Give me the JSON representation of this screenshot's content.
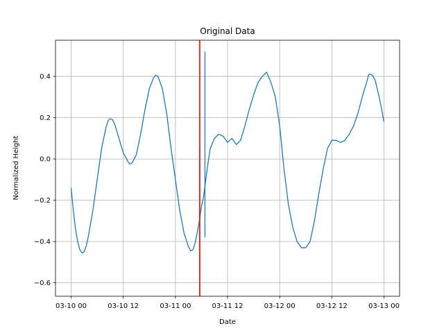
{
  "chart_data": {
    "type": "line",
    "title": "Original Data",
    "xlabel": "Date",
    "ylabel": "Normalized Height",
    "x_unit": "hours",
    "x_ticks": [
      {
        "hours": 0,
        "label": "03-10 00"
      },
      {
        "hours": 12,
        "label": "03-10 12"
      },
      {
        "hours": 24,
        "label": "03-11 00"
      },
      {
        "hours": 36,
        "label": "03-11 12"
      },
      {
        "hours": 48,
        "label": "03-12 00"
      },
      {
        "hours": 60,
        "label": "03-12 12"
      },
      {
        "hours": 72,
        "label": "03-13 00"
      }
    ],
    "y_ticks": [
      {
        "value": 0.4,
        "label": "0.4"
      },
      {
        "value": 0.2,
        "label": "0.2"
      },
      {
        "value": 0.0,
        "label": "0.0"
      },
      {
        "value": -0.2,
        "label": "−0.2"
      },
      {
        "value": -0.4,
        "label": "−0.4"
      },
      {
        "value": -0.6,
        "label": "−0.6"
      }
    ],
    "xlim": [
      -3.6,
      75.6
    ],
    "ylim": [
      -0.665,
      0.575
    ],
    "grid": true,
    "line_color": "#1f77b4",
    "vline_color": "#ff0000",
    "vline_x": 29.6,
    "spikes": [
      {
        "x": 30.8,
        "ymin": -0.38,
        "ymax": 0.52
      },
      {
        "x": 29.6,
        "ymin": -0.66,
        "ymax": 0.05
      }
    ],
    "series": [
      {
        "values": [
          [
            0,
            -0.14
          ],
          [
            0.5,
            -0.25
          ],
          [
            1,
            -0.34
          ],
          [
            1.5,
            -0.4
          ],
          [
            2,
            -0.44
          ],
          [
            2.5,
            -0.455
          ],
          [
            3,
            -0.45
          ],
          [
            3.5,
            -0.42
          ],
          [
            4,
            -0.37
          ],
          [
            5,
            -0.25
          ],
          [
            6,
            -0.1
          ],
          [
            7,
            0.05
          ],
          [
            8,
            0.15
          ],
          [
            8.5,
            0.185
          ],
          [
            9,
            0.195
          ],
          [
            9.5,
            0.19
          ],
          [
            10,
            0.17
          ],
          [
            11,
            0.1
          ],
          [
            12,
            0.03
          ],
          [
            13,
            -0.01
          ],
          [
            13.5,
            -0.025
          ],
          [
            14,
            -0.02
          ],
          [
            15,
            0.02
          ],
          [
            16,
            0.12
          ],
          [
            17,
            0.24
          ],
          [
            18,
            0.34
          ],
          [
            19,
            0.395
          ],
          [
            19.5,
            0.405
          ],
          [
            20,
            0.4
          ],
          [
            21,
            0.34
          ],
          [
            22,
            0.22
          ],
          [
            23,
            0.05
          ],
          [
            24,
            -0.1
          ],
          [
            25,
            -0.25
          ],
          [
            26,
            -0.36
          ],
          [
            27,
            -0.425
          ],
          [
            27.5,
            -0.445
          ],
          [
            28,
            -0.44
          ],
          [
            28.5,
            -0.41
          ],
          [
            29,
            -0.36
          ],
          [
            29.5,
            -0.3
          ],
          [
            30,
            -0.23
          ],
          [
            30.5,
            -0.18
          ],
          [
            31,
            -0.1
          ],
          [
            31.5,
            -0.02
          ],
          [
            32,
            0.05
          ],
          [
            33,
            0.1
          ],
          [
            34,
            0.12
          ],
          [
            35,
            0.11
          ],
          [
            36,
            0.08
          ],
          [
            37,
            0.1
          ],
          [
            38,
            0.07
          ],
          [
            39,
            0.09
          ],
          [
            40,
            0.16
          ],
          [
            41,
            0.24
          ],
          [
            42,
            0.31
          ],
          [
            43,
            0.37
          ],
          [
            44,
            0.4
          ],
          [
            45,
            0.42
          ],
          [
            46,
            0.37
          ],
          [
            47,
            0.3
          ],
          [
            48,
            0.16
          ],
          [
            49,
            -0.05
          ],
          [
            50,
            -0.22
          ],
          [
            51,
            -0.33
          ],
          [
            52,
            -0.4
          ],
          [
            53,
            -0.43
          ],
          [
            54,
            -0.43
          ],
          [
            55,
            -0.4
          ],
          [
            56,
            -0.3
          ],
          [
            57,
            -0.17
          ],
          [
            58,
            -0.05
          ],
          [
            59,
            0.05
          ],
          [
            60,
            0.09
          ],
          [
            61,
            0.09
          ],
          [
            62,
            0.08
          ],
          [
            63,
            0.09
          ],
          [
            64,
            0.12
          ],
          [
            65,
            0.16
          ],
          [
            66,
            0.22
          ],
          [
            67,
            0.3
          ],
          [
            68,
            0.37
          ],
          [
            68.5,
            0.41
          ],
          [
            69,
            0.41
          ],
          [
            69.5,
            0.4
          ],
          [
            70,
            0.38
          ],
          [
            71,
            0.29
          ],
          [
            72,
            0.18
          ]
        ]
      }
    ]
  }
}
